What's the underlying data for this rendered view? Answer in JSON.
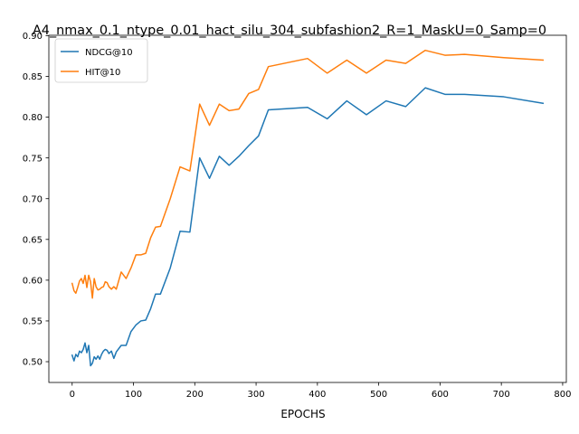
{
  "chart_data": {
    "type": "line",
    "title": "A4_nmax_0.1_ntype_0.01_hact_silu_304_subfashion2_R=1_MaskU=0_Samp=0",
    "xlabel": "EPOCHS",
    "ylabel": "",
    "xlim": [
      -38,
      806
    ],
    "ylim": [
      0.4745,
      0.9005
    ],
    "xticks": [
      0,
      100,
      200,
      300,
      400,
      500,
      600,
      700,
      800
    ],
    "yticks": [
      0.5,
      0.55,
      0.6,
      0.65,
      0.7,
      0.75,
      0.8,
      0.85,
      0.9
    ],
    "xtick_labels": [
      "0",
      "100",
      "200",
      "300",
      "400",
      "500",
      "600",
      "700",
      "800"
    ],
    "ytick_labels": [
      "0.50",
      "0.55",
      "0.60",
      "0.65",
      "0.70",
      "0.75",
      "0.80",
      "0.85",
      "0.90"
    ],
    "grid": false,
    "legend_position": "top-left",
    "series": [
      {
        "name": "NDCG@10",
        "color": "#1f77b4",
        "points": [
          [
            0,
            0.508
          ],
          [
            3,
            0.501
          ],
          [
            6,
            0.509
          ],
          [
            9,
            0.506
          ],
          [
            12,
            0.513
          ],
          [
            15,
            0.511
          ],
          [
            18,
            0.515
          ],
          [
            21,
            0.523
          ],
          [
            24,
            0.511
          ],
          [
            27,
            0.52
          ],
          [
            30,
            0.495
          ],
          [
            33,
            0.498
          ],
          [
            36,
            0.506
          ],
          [
            39,
            0.503
          ],
          [
            42,
            0.507
          ],
          [
            45,
            0.503
          ],
          [
            48,
            0.509
          ],
          [
            51,
            0.513
          ],
          [
            54,
            0.515
          ],
          [
            57,
            0.514
          ],
          [
            60,
            0.51
          ],
          [
            64,
            0.513
          ],
          [
            68,
            0.504
          ],
          [
            72,
            0.512
          ],
          [
            80,
            0.52
          ],
          [
            88,
            0.52
          ],
          [
            96,
            0.537
          ],
          [
            104,
            0.545
          ],
          [
            112,
            0.55
          ],
          [
            120,
            0.551
          ],
          [
            128,
            0.565
          ],
          [
            136,
            0.583
          ],
          [
            144,
            0.583
          ],
          [
            160,
            0.615
          ],
          [
            176,
            0.66
          ],
          [
            192,
            0.659
          ],
          [
            208,
            0.75
          ],
          [
            224,
            0.725
          ],
          [
            240,
            0.752
          ],
          [
            256,
            0.741
          ],
          [
            272,
            0.752
          ],
          [
            288,
            0.765
          ],
          [
            304,
            0.777
          ],
          [
            320,
            0.809
          ],
          [
            384,
            0.812
          ],
          [
            416,
            0.798
          ],
          [
            448,
            0.82
          ],
          [
            480,
            0.803
          ],
          [
            512,
            0.82
          ],
          [
            544,
            0.813
          ],
          [
            576,
            0.836
          ],
          [
            608,
            0.828
          ],
          [
            640,
            0.828
          ],
          [
            704,
            0.825
          ],
          [
            768,
            0.817
          ]
        ]
      },
      {
        "name": "HIT@10",
        "color": "#ff7f0e",
        "points": [
          [
            0,
            0.596
          ],
          [
            3,
            0.587
          ],
          [
            6,
            0.584
          ],
          [
            9,
            0.591
          ],
          [
            12,
            0.599
          ],
          [
            15,
            0.602
          ],
          [
            18,
            0.596
          ],
          [
            21,
            0.606
          ],
          [
            24,
            0.591
          ],
          [
            27,
            0.606
          ],
          [
            30,
            0.598
          ],
          [
            33,
            0.578
          ],
          [
            36,
            0.602
          ],
          [
            39,
            0.592
          ],
          [
            42,
            0.588
          ],
          [
            45,
            0.589
          ],
          [
            48,
            0.591
          ],
          [
            51,
            0.592
          ],
          [
            54,
            0.598
          ],
          [
            57,
            0.597
          ],
          [
            60,
            0.592
          ],
          [
            64,
            0.589
          ],
          [
            68,
            0.592
          ],
          [
            72,
            0.589
          ],
          [
            80,
            0.61
          ],
          [
            88,
            0.602
          ],
          [
            96,
            0.615
          ],
          [
            104,
            0.631
          ],
          [
            112,
            0.631
          ],
          [
            120,
            0.633
          ],
          [
            128,
            0.652
          ],
          [
            136,
            0.665
          ],
          [
            144,
            0.666
          ],
          [
            160,
            0.7
          ],
          [
            176,
            0.739
          ],
          [
            192,
            0.734
          ],
          [
            208,
            0.816
          ],
          [
            224,
            0.79
          ],
          [
            240,
            0.816
          ],
          [
            256,
            0.808
          ],
          [
            272,
            0.81
          ],
          [
            288,
            0.829
          ],
          [
            304,
            0.834
          ],
          [
            320,
            0.862
          ],
          [
            384,
            0.872
          ],
          [
            416,
            0.854
          ],
          [
            448,
            0.87
          ],
          [
            480,
            0.854
          ],
          [
            512,
            0.87
          ],
          [
            544,
            0.866
          ],
          [
            576,
            0.882
          ],
          [
            608,
            0.876
          ],
          [
            640,
            0.877
          ],
          [
            704,
            0.873
          ],
          [
            768,
            0.87
          ]
        ]
      }
    ]
  }
}
